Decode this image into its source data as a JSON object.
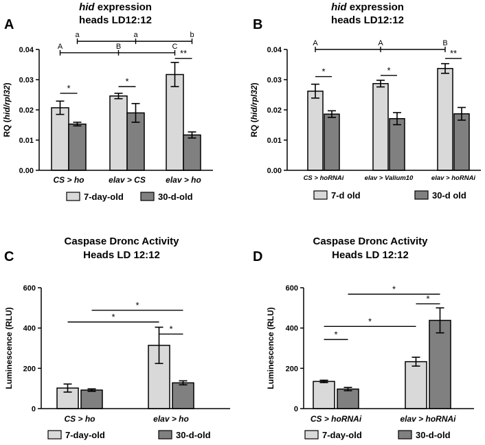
{
  "colors": {
    "light_bar": "#d9d9d9",
    "dark_bar": "#808080",
    "stroke": "#000000"
  },
  "chart_data": [
    {
      "panel": "A",
      "type": "bar",
      "title_italic": "hid",
      "title_rest": " expression",
      "title_line2": "heads LD12:12",
      "ylabel_prefix": "RQ (",
      "ylabel_italic": "hid/rpl32",
      "ylabel_suffix": ")",
      "ylim": [
        0,
        0.04
      ],
      "yticks": [
        "0.00",
        "0.01",
        "0.02",
        "0.03",
        "0.04"
      ],
      "categories": [
        "CS > ho",
        "elav > CS",
        "elav > ho"
      ],
      "series": [
        {
          "name": "7-day-old",
          "values": [
            0.0207,
            0.0246,
            0.0317
          ],
          "errors": [
            0.0022,
            0.0009,
            0.004
          ]
        },
        {
          "name": "30-d-old",
          "values": [
            0.0153,
            0.019,
            0.0117
          ],
          "errors": [
            0.0006,
            0.0031,
            0.001
          ]
        }
      ],
      "significance": [
        {
          "label": "*",
          "from": [
            0,
            0
          ],
          "to": [
            0,
            1
          ],
          "y": 0.0255
        },
        {
          "label": "*",
          "from": [
            1,
            0
          ],
          "to": [
            1,
            1
          ],
          "y": 0.0277
        },
        {
          "label": "**",
          "from": [
            2,
            0
          ],
          "to": [
            2,
            1
          ],
          "y": 0.037
        }
      ],
      "letter_groups": [
        {
          "y": 0.0389,
          "from": [
            0,
            0
          ],
          "to": [
            2,
            0
          ],
          "letters": [
            [
              "A",
              [
                0,
                0
              ]
            ],
            [
              "B",
              [
                1,
                0
              ]
            ],
            [
              "C",
              [
                2,
                0
              ]
            ]
          ]
        },
        {
          "y": 0.0427,
          "from": [
            0,
            1
          ],
          "to": [
            2,
            1
          ],
          "letters": [
            [
              "a",
              [
                0,
                1
              ]
            ],
            [
              "a",
              [
                1,
                1
              ]
            ],
            [
              "b",
              [
                2,
                1
              ]
            ]
          ]
        }
      ]
    },
    {
      "panel": "B",
      "type": "bar",
      "title_italic": "hid",
      "title_rest": " expression",
      "title_line2": "heads LD12:12",
      "ylabel_prefix": "RQ (",
      "ylabel_italic": "hid/rpl32",
      "ylabel_suffix": ")",
      "ylim": [
        0,
        0.04
      ],
      "yticks": [
        "0.00",
        "0.01",
        "0.02",
        "0.03",
        "0.04"
      ],
      "categories": [
        "CS > hoRNAi",
        "elav > Valium10",
        "elav > hoRNAi"
      ],
      "series": [
        {
          "name": "7-d old",
          "values": [
            0.0262,
            0.0287,
            0.0337
          ],
          "errors": [
            0.0023,
            0.0011,
            0.0016
          ]
        },
        {
          "name": "30-d old",
          "values": [
            0.0186,
            0.0171,
            0.0187
          ],
          "errors": [
            0.0011,
            0.002,
            0.0021
          ]
        }
      ],
      "significance": [
        {
          "label": "*",
          "from": [
            0,
            0
          ],
          "to": [
            0,
            1
          ],
          "y": 0.031
        },
        {
          "label": "*",
          "from": [
            1,
            0
          ],
          "to": [
            1,
            1
          ],
          "y": 0.0314
        },
        {
          "label": "**",
          "from": [
            2,
            0
          ],
          "to": [
            2,
            1
          ],
          "y": 0.037
        }
      ],
      "letter_groups": [
        {
          "y": 0.04,
          "from": [
            0,
            0
          ],
          "to": [
            2,
            0
          ],
          "letters": [
            [
              "A",
              [
                0,
                0
              ]
            ],
            [
              "A",
              [
                1,
                0
              ]
            ],
            [
              "B",
              [
                2,
                0
              ]
            ]
          ]
        }
      ]
    },
    {
      "panel": "C",
      "type": "bar",
      "title_line1": "Caspase Dronc Activity",
      "title_line2": "Heads LD 12:12",
      "ylabel": "Luminescence (RLU)",
      "ylim": [
        0,
        600
      ],
      "yticks": [
        "0",
        "200",
        "400",
        "600"
      ],
      "categories": [
        "CS > ho",
        "elav > ho"
      ],
      "series": [
        {
          "name": "7-day-old",
          "values": [
            102,
            314
          ],
          "errors": [
            20,
            90
          ]
        },
        {
          "name": "30-d-old",
          "values": [
            92,
            128
          ],
          "errors": [
            6,
            10
          ]
        }
      ],
      "significance": [
        {
          "label": "*",
          "from": [
            0,
            0
          ],
          "to": [
            1,
            0
          ],
          "y": 430
        },
        {
          "label": "*",
          "from": [
            0,
            1
          ],
          "to": [
            1,
            1
          ],
          "y": 488
        },
        {
          "label": "*",
          "from": [
            1,
            0
          ],
          "to": [
            1,
            1
          ],
          "y": 370
        }
      ]
    },
    {
      "panel": "D",
      "type": "bar",
      "title_line1": "Caspase Dronc Activity",
      "title_line2": "Heads LD 12:12",
      "ylabel": "Luminescence (RLU)",
      "ylim": [
        0,
        600
      ],
      "yticks": [
        "0",
        "200",
        "400",
        "600"
      ],
      "categories": [
        "CS > hoRNAi",
        "elav > hoRNAi"
      ],
      "series": [
        {
          "name": "7-day-old",
          "values": [
            135,
            233
          ],
          "errors": [
            6,
            22
          ]
        },
        {
          "name": "30-d-old",
          "values": [
            97,
            438
          ],
          "errors": [
            8,
            62
          ]
        }
      ],
      "significance": [
        {
          "label": "*",
          "from": [
            0,
            0
          ],
          "to": [
            0,
            1
          ],
          "y": 343
        },
        {
          "label": "*",
          "from": [
            0,
            0
          ],
          "to": [
            1,
            0
          ],
          "y": 408
        },
        {
          "label": "*",
          "from": [
            1,
            0
          ],
          "to": [
            1,
            1
          ],
          "y": 520
        },
        {
          "label": "*",
          "from": [
            0,
            1
          ],
          "to": [
            1,
            1
          ],
          "y": 568
        }
      ]
    }
  ]
}
